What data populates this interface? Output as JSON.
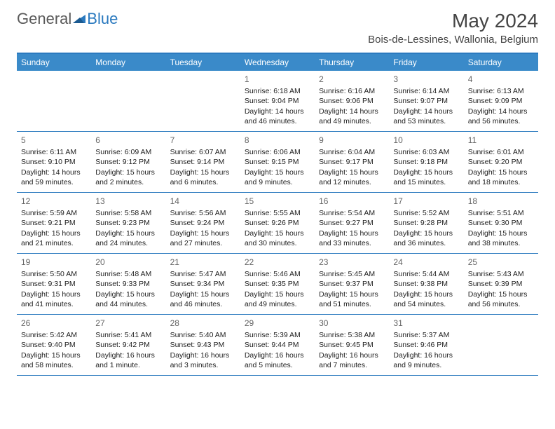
{
  "logo": {
    "general": "General",
    "blue": "Blue"
  },
  "title": "May 2024",
  "location": "Bois-de-Lessines, Wallonia, Belgium",
  "weekdays": [
    "Sunday",
    "Monday",
    "Tuesday",
    "Wednesday",
    "Thursday",
    "Friday",
    "Saturday"
  ],
  "styling": {
    "header_bg": "#3a8ac9",
    "border_color": "#2b7abf",
    "background_color": "#ffffff",
    "text_color": "#222222",
    "daynum_color": "#666666",
    "weekday_font_size": 12,
    "body_font_size": 10.5,
    "title_font_size": 28,
    "location_font_size": 15
  },
  "weeks": [
    [
      {
        "num": "",
        "sunrise": "",
        "sunset": "",
        "daylight": ""
      },
      {
        "num": "",
        "sunrise": "",
        "sunset": "",
        "daylight": ""
      },
      {
        "num": "",
        "sunrise": "",
        "sunset": "",
        "daylight": ""
      },
      {
        "num": "1",
        "sunrise": "Sunrise: 6:18 AM",
        "sunset": "Sunset: 9:04 PM",
        "daylight": "Daylight: 14 hours and 46 minutes."
      },
      {
        "num": "2",
        "sunrise": "Sunrise: 6:16 AM",
        "sunset": "Sunset: 9:06 PM",
        "daylight": "Daylight: 14 hours and 49 minutes."
      },
      {
        "num": "3",
        "sunrise": "Sunrise: 6:14 AM",
        "sunset": "Sunset: 9:07 PM",
        "daylight": "Daylight: 14 hours and 53 minutes."
      },
      {
        "num": "4",
        "sunrise": "Sunrise: 6:13 AM",
        "sunset": "Sunset: 9:09 PM",
        "daylight": "Daylight: 14 hours and 56 minutes."
      }
    ],
    [
      {
        "num": "5",
        "sunrise": "Sunrise: 6:11 AM",
        "sunset": "Sunset: 9:10 PM",
        "daylight": "Daylight: 14 hours and 59 minutes."
      },
      {
        "num": "6",
        "sunrise": "Sunrise: 6:09 AM",
        "sunset": "Sunset: 9:12 PM",
        "daylight": "Daylight: 15 hours and 2 minutes."
      },
      {
        "num": "7",
        "sunrise": "Sunrise: 6:07 AM",
        "sunset": "Sunset: 9:14 PM",
        "daylight": "Daylight: 15 hours and 6 minutes."
      },
      {
        "num": "8",
        "sunrise": "Sunrise: 6:06 AM",
        "sunset": "Sunset: 9:15 PM",
        "daylight": "Daylight: 15 hours and 9 minutes."
      },
      {
        "num": "9",
        "sunrise": "Sunrise: 6:04 AM",
        "sunset": "Sunset: 9:17 PM",
        "daylight": "Daylight: 15 hours and 12 minutes."
      },
      {
        "num": "10",
        "sunrise": "Sunrise: 6:03 AM",
        "sunset": "Sunset: 9:18 PM",
        "daylight": "Daylight: 15 hours and 15 minutes."
      },
      {
        "num": "11",
        "sunrise": "Sunrise: 6:01 AM",
        "sunset": "Sunset: 9:20 PM",
        "daylight": "Daylight: 15 hours and 18 minutes."
      }
    ],
    [
      {
        "num": "12",
        "sunrise": "Sunrise: 5:59 AM",
        "sunset": "Sunset: 9:21 PM",
        "daylight": "Daylight: 15 hours and 21 minutes."
      },
      {
        "num": "13",
        "sunrise": "Sunrise: 5:58 AM",
        "sunset": "Sunset: 9:23 PM",
        "daylight": "Daylight: 15 hours and 24 minutes."
      },
      {
        "num": "14",
        "sunrise": "Sunrise: 5:56 AM",
        "sunset": "Sunset: 9:24 PM",
        "daylight": "Daylight: 15 hours and 27 minutes."
      },
      {
        "num": "15",
        "sunrise": "Sunrise: 5:55 AM",
        "sunset": "Sunset: 9:26 PM",
        "daylight": "Daylight: 15 hours and 30 minutes."
      },
      {
        "num": "16",
        "sunrise": "Sunrise: 5:54 AM",
        "sunset": "Sunset: 9:27 PM",
        "daylight": "Daylight: 15 hours and 33 minutes."
      },
      {
        "num": "17",
        "sunrise": "Sunrise: 5:52 AM",
        "sunset": "Sunset: 9:28 PM",
        "daylight": "Daylight: 15 hours and 36 minutes."
      },
      {
        "num": "18",
        "sunrise": "Sunrise: 5:51 AM",
        "sunset": "Sunset: 9:30 PM",
        "daylight": "Daylight: 15 hours and 38 minutes."
      }
    ],
    [
      {
        "num": "19",
        "sunrise": "Sunrise: 5:50 AM",
        "sunset": "Sunset: 9:31 PM",
        "daylight": "Daylight: 15 hours and 41 minutes."
      },
      {
        "num": "20",
        "sunrise": "Sunrise: 5:48 AM",
        "sunset": "Sunset: 9:33 PM",
        "daylight": "Daylight: 15 hours and 44 minutes."
      },
      {
        "num": "21",
        "sunrise": "Sunrise: 5:47 AM",
        "sunset": "Sunset: 9:34 PM",
        "daylight": "Daylight: 15 hours and 46 minutes."
      },
      {
        "num": "22",
        "sunrise": "Sunrise: 5:46 AM",
        "sunset": "Sunset: 9:35 PM",
        "daylight": "Daylight: 15 hours and 49 minutes."
      },
      {
        "num": "23",
        "sunrise": "Sunrise: 5:45 AM",
        "sunset": "Sunset: 9:37 PM",
        "daylight": "Daylight: 15 hours and 51 minutes."
      },
      {
        "num": "24",
        "sunrise": "Sunrise: 5:44 AM",
        "sunset": "Sunset: 9:38 PM",
        "daylight": "Daylight: 15 hours and 54 minutes."
      },
      {
        "num": "25",
        "sunrise": "Sunrise: 5:43 AM",
        "sunset": "Sunset: 9:39 PM",
        "daylight": "Daylight: 15 hours and 56 minutes."
      }
    ],
    [
      {
        "num": "26",
        "sunrise": "Sunrise: 5:42 AM",
        "sunset": "Sunset: 9:40 PM",
        "daylight": "Daylight: 15 hours and 58 minutes."
      },
      {
        "num": "27",
        "sunrise": "Sunrise: 5:41 AM",
        "sunset": "Sunset: 9:42 PM",
        "daylight": "Daylight: 16 hours and 1 minute."
      },
      {
        "num": "28",
        "sunrise": "Sunrise: 5:40 AM",
        "sunset": "Sunset: 9:43 PM",
        "daylight": "Daylight: 16 hours and 3 minutes."
      },
      {
        "num": "29",
        "sunrise": "Sunrise: 5:39 AM",
        "sunset": "Sunset: 9:44 PM",
        "daylight": "Daylight: 16 hours and 5 minutes."
      },
      {
        "num": "30",
        "sunrise": "Sunrise: 5:38 AM",
        "sunset": "Sunset: 9:45 PM",
        "daylight": "Daylight: 16 hours and 7 minutes."
      },
      {
        "num": "31",
        "sunrise": "Sunrise: 5:37 AM",
        "sunset": "Sunset: 9:46 PM",
        "daylight": "Daylight: 16 hours and 9 minutes."
      },
      {
        "num": "",
        "sunrise": "",
        "sunset": "",
        "daylight": ""
      }
    ]
  ]
}
